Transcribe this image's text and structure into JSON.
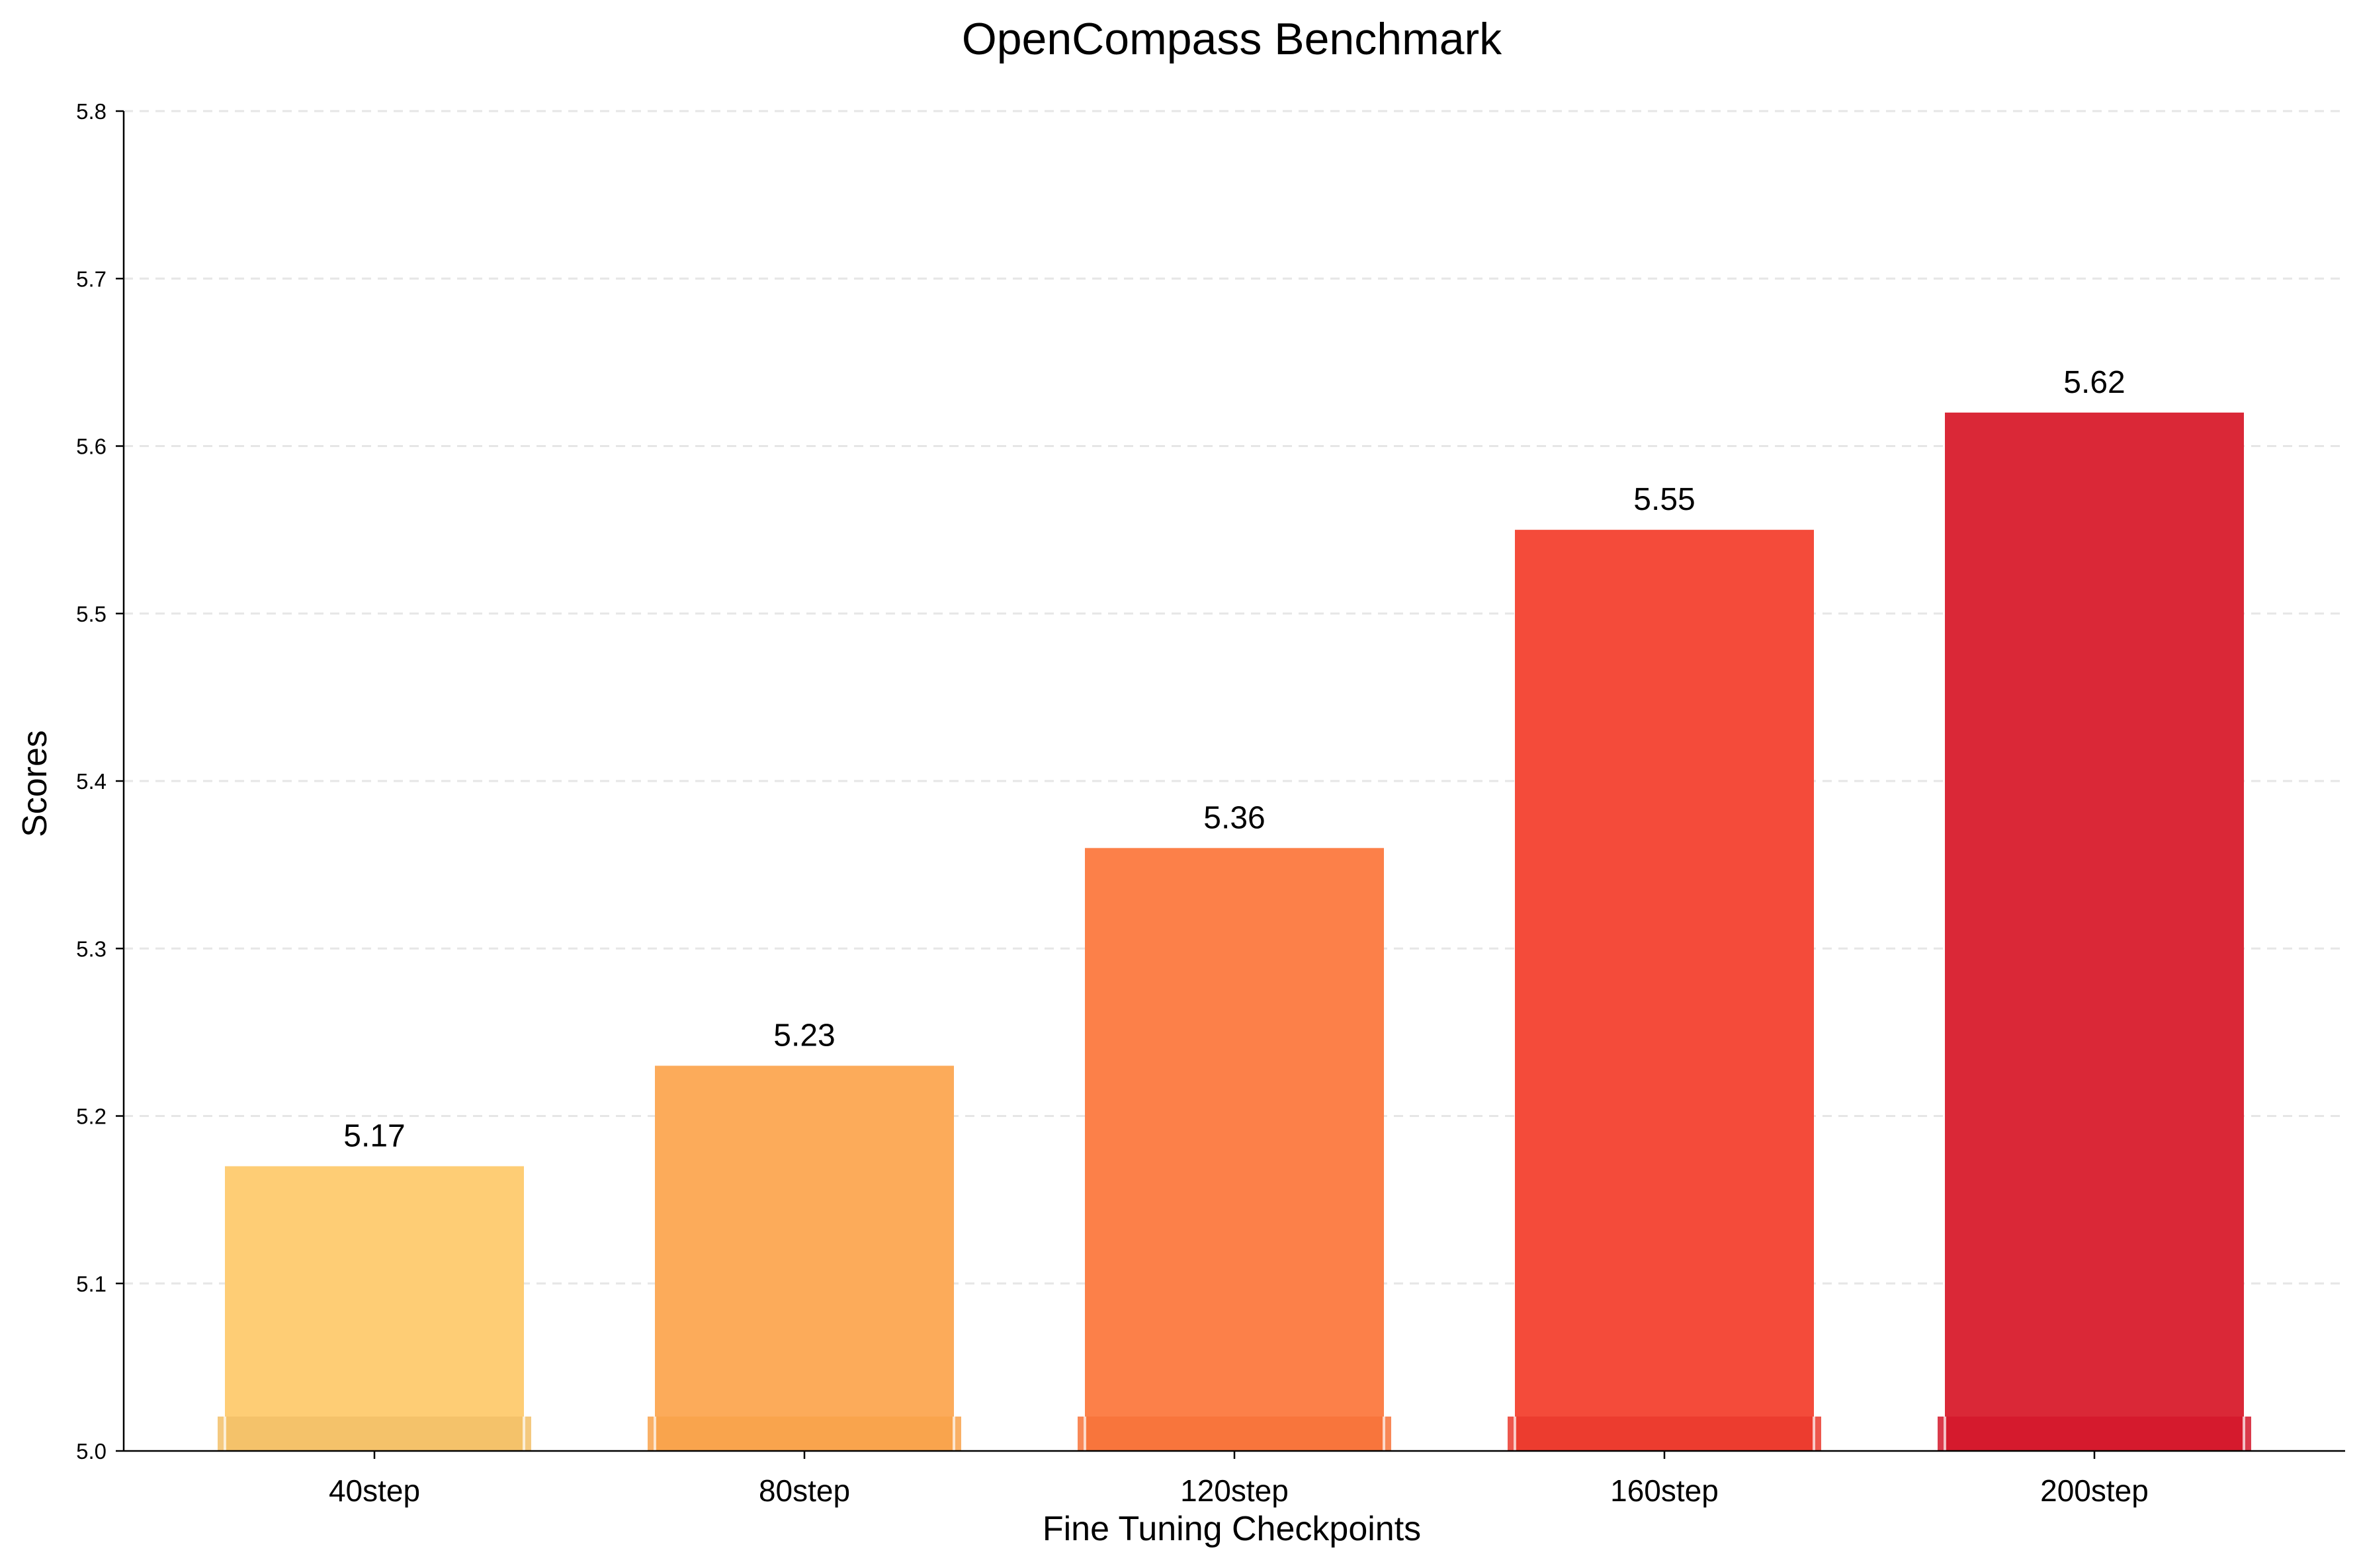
{
  "chart_data": {
    "type": "bar",
    "title": "OpenCompass Benchmark",
    "xlabel": "Fine Tuning Checkpoints",
    "ylabel": "Scores",
    "categories": [
      "40step",
      "80step",
      "120step",
      "160step",
      "200step"
    ],
    "values": [
      5.17,
      5.23,
      5.36,
      5.55,
      5.62
    ],
    "value_labels": [
      "5.17",
      "5.23",
      "5.36",
      "5.55",
      "5.62"
    ],
    "ylim": [
      5.0,
      5.8
    ],
    "yticks": [
      5.0,
      5.1,
      5.2,
      5.3,
      5.4,
      5.5,
      5.6,
      5.7,
      5.8
    ],
    "ytick_labels": [
      "5.0",
      "5.1",
      "5.2",
      "5.3",
      "5.4",
      "5.5",
      "5.6",
      "5.7",
      "5.8"
    ],
    "grid": "horizontal dashed",
    "bar_colors": [
      "#fecd75",
      "#fcab5a",
      "#fc8049",
      "#f44b3a",
      "#da2837"
    ],
    "base_strip_colors": [
      "#f2c068",
      "#f8a24b",
      "#f7733a",
      "#ea3a2e",
      "#d3182c"
    ]
  }
}
